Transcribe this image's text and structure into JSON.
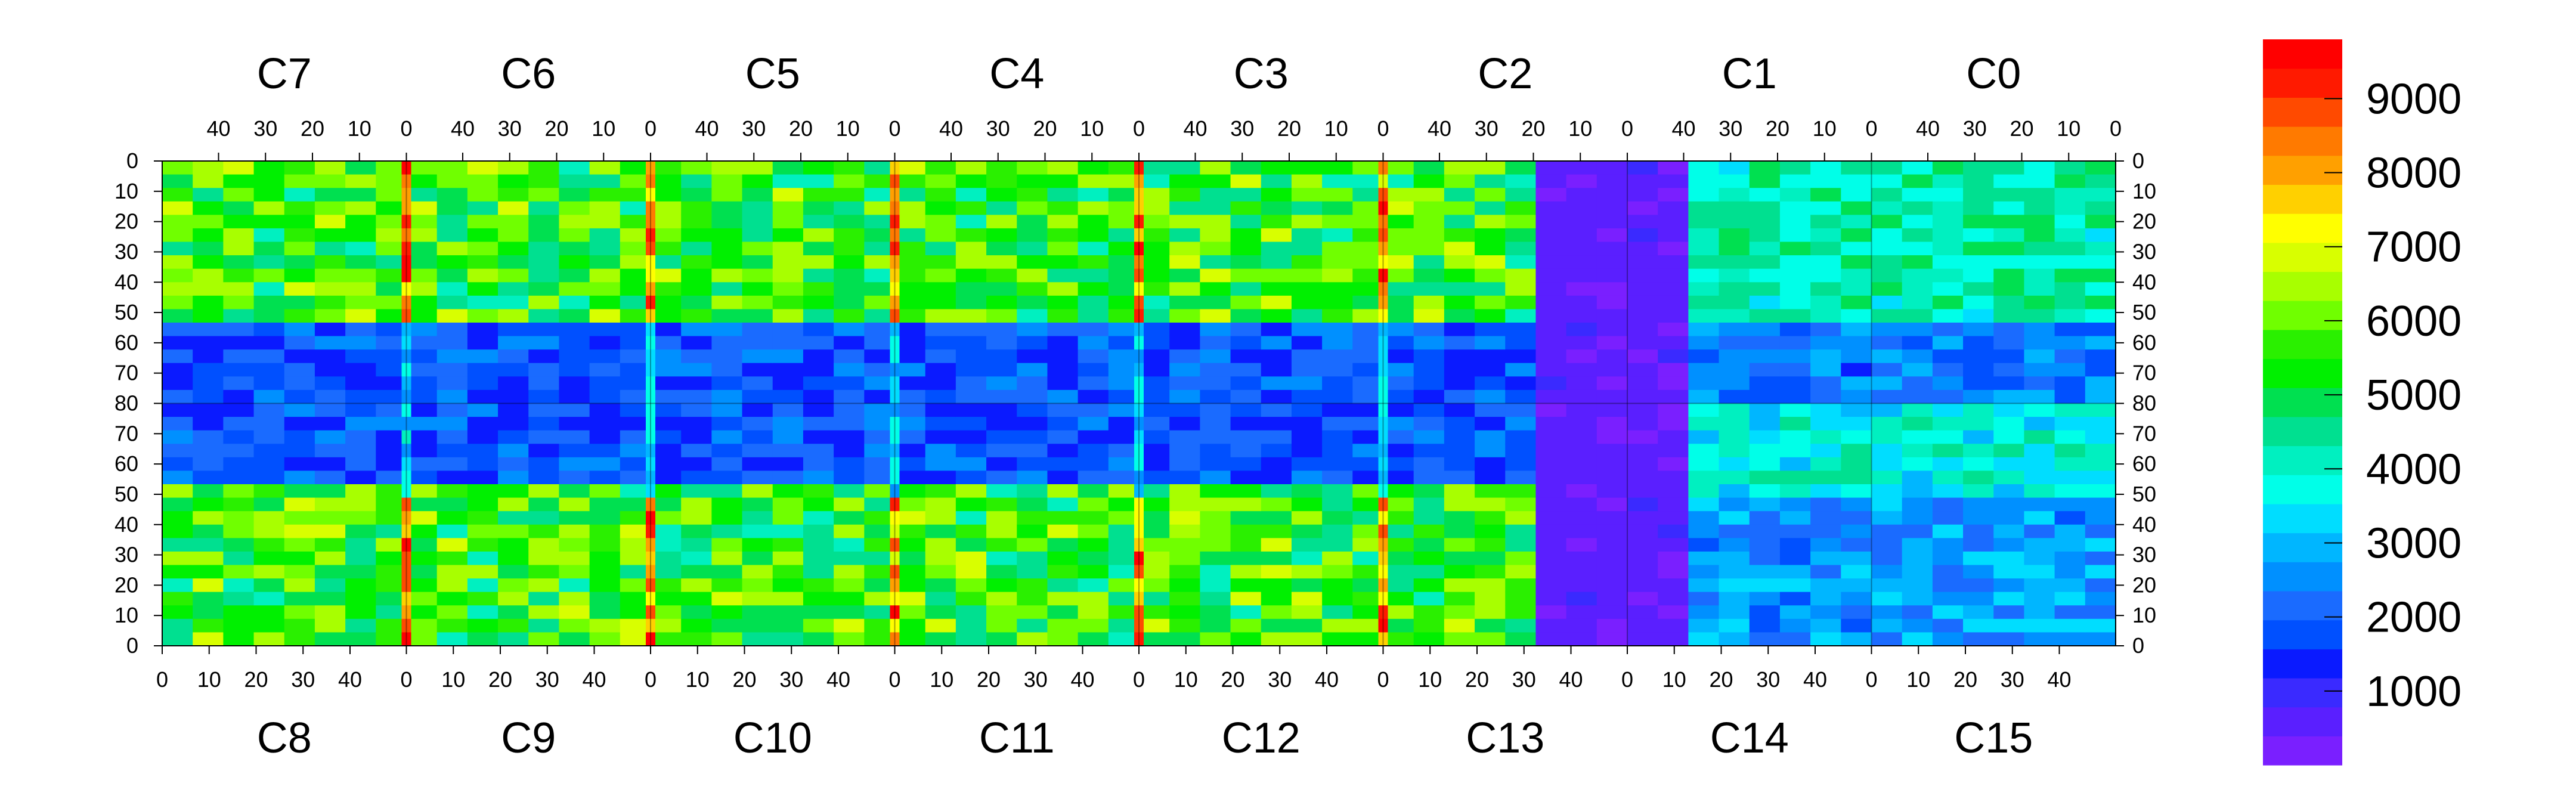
{
  "chart_data": {
    "type": "heatmap",
    "title": "",
    "top_chips": [
      "C7",
      "C6",
      "C5",
      "C4",
      "C3",
      "C2",
      "C1",
      "C0"
    ],
    "bottom_chips": [
      "C8",
      "C9",
      "C10",
      "C11",
      "C12",
      "C13",
      "C14",
      "C15"
    ],
    "chip_columns": 52,
    "chip_rows": 80,
    "top_x_tick_labels": [
      "40",
      "30",
      "20",
      "10",
      "0"
    ],
    "bottom_x_tick_labels": [
      "0",
      "10",
      "20",
      "30",
      "40"
    ],
    "y_tick_labels": [
      "0",
      "10",
      "20",
      "30",
      "40",
      "50",
      "60",
      "70",
      "80",
      "70",
      "60",
      "50",
      "40",
      "30",
      "20",
      "10",
      "0"
    ],
    "colorbar": {
      "min": 0,
      "max": 9800,
      "ticks": [
        "1000",
        "2000",
        "3000",
        "4000",
        "5000",
        "6000",
        "7000",
        "8000",
        "9000"
      ],
      "colors": [
        "#7A1FFF",
        "#5A1FFF",
        "#3A2AFF",
        "#0A1AFF",
        "#0050FF",
        "#1A6BFF",
        "#0090FF",
        "#00B6FF",
        "#00DDFF",
        "#00FFE8",
        "#00F0C0",
        "#00E090",
        "#00E050",
        "#00F000",
        "#2AF000",
        "#70FF00",
        "#A8FF00",
        "#D8FF00",
        "#FFFF00",
        "#FFD000",
        "#FFA000",
        "#FF7A00",
        "#FF4A00",
        "#FF1A00",
        "#FF0000"
      ]
    }
  }
}
